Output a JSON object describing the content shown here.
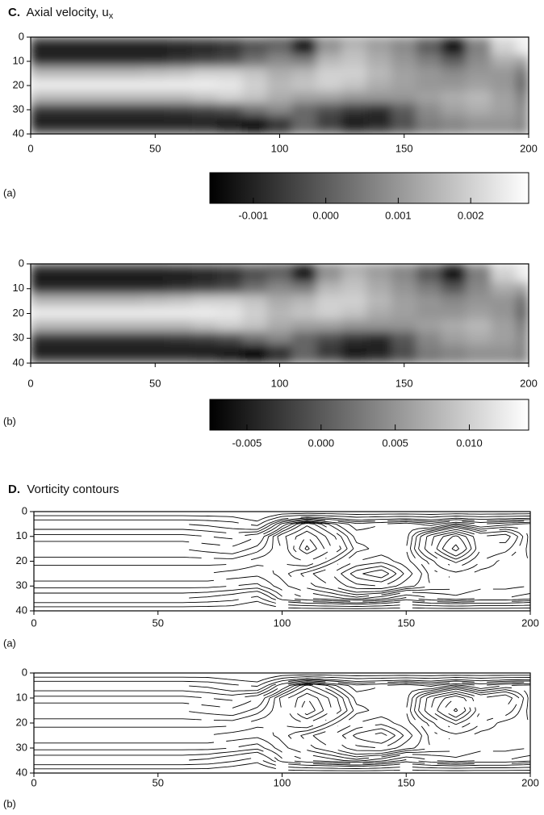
{
  "chart_data": [
    {
      "type": "heatmap",
      "panel": "C.",
      "title": "Axial velocity, u",
      "title_subscript": "x",
      "label": "(a)",
      "x": [
        0,
        10,
        20,
        30,
        40,
        50,
        60,
        70,
        80,
        90,
        100,
        110,
        120,
        130,
        140,
        150,
        160,
        170,
        180,
        190,
        200
      ],
      "y": [
        0,
        5,
        10,
        15,
        20,
        25,
        30,
        35,
        40
      ],
      "xlim": [
        0,
        200
      ],
      "ylim": [
        0,
        40
      ],
      "y_inverted": true,
      "xticks": [
        0,
        50,
        100,
        150,
        200
      ],
      "yticks": [
        0,
        10,
        20,
        30,
        40
      ],
      "zlim": [
        -0.0016,
        0.0028
      ],
      "colorbar_ticks": [
        -0.001,
        {
          "value": 0,
          "label": "0.000"
        },
        0.001,
        0.002
      ],
      "z": [
        [
          -0.0003,
          -0.0003,
          -0.0003,
          -0.0003,
          -0.0003,
          -0.0003,
          -0.0002,
          -0.0001,
          0,
          0.0003,
          0,
          -0.0008,
          0.0008,
          0.0012,
          0.001,
          0.0008,
          0.0002,
          -0.0008,
          0.0008,
          0.0022,
          0.0025
        ],
        [
          -0.0012,
          -0.0012,
          -0.0012,
          -0.0012,
          -0.0012,
          -0.0012,
          -0.0011,
          -0.001,
          -0.0008,
          -0.0002,
          0.0002,
          -0.0012,
          0.001,
          0.0016,
          0.0012,
          0.0008,
          0,
          -0.0013,
          0.0006,
          0.002,
          0.0025
        ],
        [
          -0.0008,
          -0.0008,
          -0.0008,
          -0.0008,
          -0.0008,
          -0.0008,
          -0.0006,
          -0.0004,
          -0.0002,
          0.0004,
          0.0008,
          0.0006,
          0.0016,
          0.0018,
          0.0014,
          0.001,
          0.0006,
          0,
          0.0008,
          0.0014,
          0.0012
        ],
        [
          0.0016,
          0.0016,
          0.0016,
          0.0016,
          0.0016,
          0.0017,
          0.0018,
          0.002,
          0.002,
          0.0018,
          0.0014,
          0.0016,
          0.002,
          0.002,
          0.0016,
          0.0012,
          0.001,
          0.0008,
          0.001,
          0.001,
          0.0004
        ],
        [
          0.0025,
          0.0025,
          0.0025,
          0.0025,
          0.0025,
          0.0025,
          0.0025,
          0.0025,
          0.0024,
          0.002,
          0.0016,
          0.0018,
          0.002,
          0.0018,
          0.0014,
          0.0012,
          0.001,
          0.001,
          0.0012,
          0.001,
          0.0002
        ],
        [
          0.0016,
          0.0016,
          0.0016,
          0.0016,
          0.0016,
          0.0016,
          0.0016,
          0.0018,
          0.002,
          0.0018,
          0.0014,
          0.0012,
          0.0012,
          0.001,
          0.001,
          0.001,
          0.0012,
          0.0014,
          0.0016,
          0.0012,
          0.0006
        ],
        [
          -0.0006,
          -0.0006,
          -0.0006,
          -0.0006,
          -0.0006,
          -0.0006,
          -0.0005,
          -0.0004,
          -0.0002,
          0.0004,
          0.0008,
          0.0002,
          -0.0002,
          -0.0006,
          -0.0008,
          0,
          0.0008,
          0.0012,
          0.0014,
          0.0012,
          0.0008
        ],
        [
          -0.0012,
          -0.0012,
          -0.0012,
          -0.0012,
          -0.0012,
          -0.0012,
          -0.0012,
          -0.0011,
          -0.0012,
          -0.0014,
          -0.0006,
          0.0002,
          -0.0006,
          -0.0012,
          -0.001,
          -0.0002,
          0.0006,
          0.0008,
          0.001,
          0.001,
          0.0008
        ],
        [
          -0.0003,
          -0.0003,
          -0.0003,
          -0.0003,
          -0.0003,
          -0.0003,
          -0.0003,
          -0.0004,
          -0.0008,
          -0.0012,
          -0.0008,
          0.0002,
          0,
          -0.0006,
          -0.0004,
          0,
          0.0004,
          0.0006,
          0.0008,
          0.0008,
          0.0006
        ]
      ]
    },
    {
      "type": "heatmap",
      "label": "(b)",
      "x": [
        0,
        10,
        20,
        30,
        40,
        50,
        60,
        70,
        80,
        90,
        100,
        110,
        120,
        130,
        140,
        150,
        160,
        170,
        180,
        190,
        200
      ],
      "y": [
        0,
        5,
        10,
        15,
        20,
        25,
        30,
        35,
        40
      ],
      "xlim": [
        0,
        200
      ],
      "ylim": [
        0,
        40
      ],
      "y_inverted": true,
      "xticks": [
        0,
        50,
        100,
        150,
        200
      ],
      "yticks": [
        0,
        10,
        20,
        30,
        40
      ],
      "zlim": [
        -0.0075,
        0.014
      ],
      "colorbar_ticks": [
        -0.005,
        {
          "value": 0,
          "label": "0.000"
        },
        0.005,
        {
          "value": 0.01,
          "label": "0.010"
        }
      ],
      "z": [
        [
          -0.0015,
          -0.0015,
          -0.0015,
          -0.0015,
          -0.0015,
          -0.0015,
          -0.001,
          -0.0005,
          0,
          0.0015,
          0,
          -0.004,
          0.004,
          0.006,
          0.005,
          0.004,
          0.001,
          -0.004,
          0.004,
          0.011,
          0.0125
        ],
        [
          -0.006,
          -0.006,
          -0.006,
          -0.006,
          -0.006,
          -0.006,
          -0.0055,
          -0.005,
          -0.004,
          -0.001,
          0.001,
          -0.006,
          0.005,
          0.008,
          0.006,
          0.004,
          0,
          -0.0065,
          0.003,
          0.01,
          0.0125
        ],
        [
          -0.004,
          -0.004,
          -0.004,
          -0.004,
          -0.004,
          -0.004,
          -0.003,
          -0.002,
          -0.001,
          0.002,
          0.004,
          0.003,
          0.008,
          0.009,
          0.007,
          0.005,
          0.003,
          0,
          0.004,
          0.007,
          0.006
        ],
        [
          0.008,
          0.008,
          0.008,
          0.008,
          0.008,
          0.0085,
          0.009,
          0.01,
          0.01,
          0.009,
          0.007,
          0.008,
          0.01,
          0.01,
          0.008,
          0.006,
          0.005,
          0.004,
          0.005,
          0.005,
          0.002
        ],
        [
          0.0125,
          0.0125,
          0.0125,
          0.0125,
          0.0125,
          0.0125,
          0.0125,
          0.0125,
          0.012,
          0.01,
          0.008,
          0.009,
          0.01,
          0.009,
          0.007,
          0.006,
          0.005,
          0.005,
          0.006,
          0.005,
          0.001
        ],
        [
          0.008,
          0.008,
          0.008,
          0.008,
          0.008,
          0.008,
          0.008,
          0.009,
          0.01,
          0.009,
          0.007,
          0.006,
          0.006,
          0.005,
          0.005,
          0.005,
          0.006,
          0.007,
          0.008,
          0.006,
          0.003
        ],
        [
          -0.003,
          -0.003,
          -0.003,
          -0.003,
          -0.003,
          -0.003,
          -0.0025,
          -0.002,
          -0.001,
          0.002,
          0.004,
          0.001,
          -0.001,
          -0.003,
          -0.004,
          0,
          0.004,
          0.006,
          0.007,
          0.006,
          0.004
        ],
        [
          -0.006,
          -0.006,
          -0.006,
          -0.006,
          -0.006,
          -0.006,
          -0.006,
          -0.0055,
          -0.006,
          -0.007,
          -0.003,
          0.001,
          -0.003,
          -0.006,
          -0.005,
          -0.001,
          0.003,
          0.004,
          0.005,
          0.005,
          0.004
        ],
        [
          -0.0015,
          -0.0015,
          -0.0015,
          -0.0015,
          -0.0015,
          -0.0015,
          -0.0015,
          -0.002,
          -0.004,
          -0.006,
          -0.004,
          0.001,
          0,
          -0.003,
          -0.002,
          0,
          0.002,
          0.003,
          0.004,
          0.004,
          0.003
        ]
      ]
    },
    {
      "type": "contour",
      "panel": "D.",
      "title": "Vorticity contours",
      "label": "(a)",
      "x": [
        0,
        10,
        20,
        30,
        40,
        50,
        60,
        70,
        80,
        90,
        100,
        110,
        120,
        130,
        140,
        150,
        160,
        170,
        180,
        190,
        200
      ],
      "y": [
        0,
        5,
        10,
        15,
        20,
        25,
        30,
        35,
        40
      ],
      "xlim": [
        0,
        200
      ],
      "ylim": [
        0,
        40
      ],
      "y_inverted": true,
      "xticks": [
        0,
        50,
        100,
        150,
        200
      ],
      "yticks": [
        0,
        10,
        20,
        30,
        40
      ],
      "levels": [
        -2.5,
        -2,
        -1.5,
        -1.2,
        -0.9,
        -0.6,
        -0.3,
        -0.1,
        0.1,
        0.3,
        0.6,
        0.9,
        1.2,
        1.5,
        2,
        2.5
      ],
      "color": "#000000",
      "z": [
        [
          3,
          3,
          3,
          3,
          3,
          3,
          3,
          3,
          3,
          3.5,
          3,
          3,
          3,
          3,
          3,
          3,
          3,
          3,
          3,
          3,
          3
        ],
        [
          1.5,
          1.5,
          1.5,
          1.5,
          1.5,
          1.5,
          1.5,
          1.6,
          1.8,
          2.2,
          0.5,
          -0.5,
          0.2,
          0.8,
          0.6,
          0.4,
          0.8,
          0.2,
          0.6,
          0.4,
          0.2
        ],
        [
          0.8,
          0.8,
          0.8,
          0.8,
          0.8,
          0.8,
          0.8,
          0.9,
          1,
          0.6,
          -0.5,
          -1.2,
          -0.4,
          0.4,
          0.4,
          0.4,
          -0.8,
          -1.6,
          -0.6,
          -0.8,
          0.2
        ],
        [
          0.3,
          0.3,
          0.3,
          0.3,
          0.3,
          0.3,
          0.3,
          0.4,
          0.5,
          0.2,
          -0.3,
          -1.6,
          -0.6,
          0.2,
          0.4,
          0.3,
          -0.9,
          -2.2,
          -0.6,
          -0.4,
          0.2
        ],
        [
          0,
          0,
          0,
          0,
          0,
          0,
          0,
          0,
          0,
          -0.2,
          -0.3,
          -0.6,
          0,
          0.6,
          0.8,
          0.4,
          -0.2,
          -1,
          -0.3,
          0,
          0.1
        ],
        [
          -0.3,
          -0.3,
          -0.3,
          -0.3,
          -0.3,
          -0.3,
          -0.3,
          -0.3,
          -0.4,
          -0.5,
          -0.2,
          0.2,
          0.6,
          1.4,
          1.8,
          0.8,
          0,
          -0.2,
          0,
          0,
          -0.1
        ],
        [
          -0.8,
          -0.8,
          -0.8,
          -0.8,
          -0.8,
          -0.8,
          -0.8,
          -0.8,
          -0.9,
          -1,
          -0.4,
          0,
          0.3,
          0.8,
          0.9,
          0.4,
          0.1,
          0,
          -0.2,
          -0.2,
          -0.3
        ],
        [
          -1.5,
          -1.5,
          -1.5,
          -1.5,
          -1.5,
          -1.5,
          -1.5,
          -1.6,
          -1.8,
          -2.2,
          -1,
          -0.6,
          -0.4,
          -0.2,
          -0.5,
          -1,
          -0.6,
          -0.4,
          -0.6,
          -0.6,
          -0.8
        ],
        [
          -3,
          -3,
          -3,
          -3,
          -3,
          -3,
          -3,
          -3,
          -3,
          -3.5,
          -3,
          -3,
          -3,
          -3,
          -3,
          -3,
          -3,
          -3,
          -3,
          -3,
          -3
        ]
      ]
    },
    {
      "type": "contour",
      "label": "(b)",
      "x": [
        0,
        10,
        20,
        30,
        40,
        50,
        60,
        70,
        80,
        90,
        100,
        110,
        120,
        130,
        140,
        150,
        160,
        170,
        180,
        190,
        200
      ],
      "y": [
        0,
        5,
        10,
        15,
        20,
        25,
        30,
        35,
        40
      ],
      "xlim": [
        0,
        200
      ],
      "ylim": [
        0,
        40
      ],
      "y_inverted": true,
      "xticks": [
        0,
        50,
        100,
        150,
        200
      ],
      "yticks": [
        0,
        10,
        20,
        30,
        40
      ],
      "levels": [
        -2.5,
        -2,
        -1.5,
        -1.2,
        -0.9,
        -0.6,
        -0.3,
        -0.1,
        0.1,
        0.3,
        0.6,
        0.9,
        1.2,
        1.5,
        2,
        2.5
      ],
      "color": "#000000",
      "z": [
        [
          3,
          3,
          3,
          3,
          3,
          3,
          3,
          3,
          3.2,
          3.5,
          3,
          3,
          3,
          3,
          3,
          3,
          3,
          3,
          3,
          3,
          3
        ],
        [
          1.5,
          1.5,
          1.5,
          1.5,
          1.5,
          1.5,
          1.5,
          1.6,
          1.9,
          2.1,
          0.6,
          -0.4,
          0.2,
          0.8,
          0.6,
          0.4,
          0.7,
          0.2,
          0.6,
          0.3,
          0.2
        ],
        [
          0.8,
          0.8,
          0.8,
          0.8,
          0.8,
          0.8,
          0.8,
          0.9,
          1,
          0.6,
          -0.4,
          -1.2,
          -0.5,
          0.4,
          0.4,
          0.4,
          -0.8,
          -1.5,
          -0.6,
          -0.9,
          0.2
        ],
        [
          0.3,
          0.3,
          0.3,
          0.3,
          0.3,
          0.3,
          0.3,
          0.4,
          0.5,
          0.2,
          -0.3,
          -1.5,
          -0.6,
          0.2,
          0.4,
          0.3,
          -0.9,
          -2.1,
          -0.6,
          -0.5,
          0.2
        ],
        [
          0,
          0,
          0,
          0,
          0,
          0,
          0,
          0,
          0,
          -0.2,
          -0.3,
          -0.6,
          0,
          0.6,
          0.8,
          0.4,
          -0.2,
          -1,
          -0.3,
          0,
          0.1
        ],
        [
          -0.3,
          -0.3,
          -0.3,
          -0.3,
          -0.3,
          -0.3,
          -0.3,
          -0.3,
          -0.4,
          -0.5,
          -0.2,
          0.2,
          0.6,
          1.3,
          1.7,
          0.8,
          0,
          -0.2,
          0,
          0,
          -0.1
        ],
        [
          -0.8,
          -0.8,
          -0.8,
          -0.8,
          -0.8,
          -0.8,
          -0.8,
          -0.8,
          -0.9,
          -1.1,
          -0.4,
          0,
          0.3,
          0.8,
          0.9,
          0.4,
          0.1,
          0,
          -0.2,
          -0.2,
          -0.3
        ],
        [
          -1.5,
          -1.5,
          -1.5,
          -1.5,
          -1.5,
          -1.5,
          -1.5,
          -1.6,
          -1.9,
          -2.3,
          -1,
          -0.6,
          -0.4,
          -0.2,
          -0.5,
          -1,
          -0.6,
          -0.4,
          -0.6,
          -0.6,
          -0.8
        ],
        [
          -3,
          -3,
          -3,
          -3,
          -3,
          -3,
          -3,
          -3,
          -3.2,
          -3.5,
          -3,
          -3,
          -3,
          -3,
          -3,
          -3,
          -3,
          -3,
          -3,
          -3,
          -3
        ]
      ]
    }
  ]
}
